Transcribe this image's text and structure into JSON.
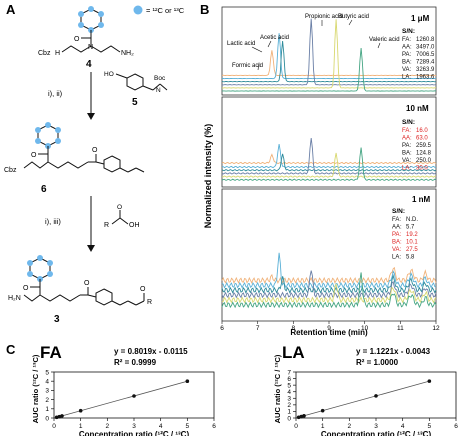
{
  "panels": {
    "a": "A",
    "b": "B",
    "c": "C"
  },
  "scheme": {
    "legend_text": "= ¹²C or ¹³C",
    "label_cbz_top": "Cbz",
    "label_nh2": "NH₂",
    "label_nh_top": "N",
    "label_h_top": "H",
    "compound_4": "4",
    "step1": "i), ii)",
    "reagent5_ho": "HO",
    "reagent5_boc": "Boc",
    "reagent5_n": "N",
    "compound_5": "5",
    "label_cbz_mid": "Cbz",
    "compound_6": "6",
    "step2": "i), iii)",
    "reagent_r": "R",
    "reagent_oh": "OH",
    "label_h2n": "H₂N",
    "label_r": "R",
    "compound_3": "3"
  },
  "chromatogram": {
    "ylabel": "Normalized intensity (%)",
    "xlabel": "Retention time (min)",
    "x_ticks": [
      "6",
      "7",
      "8",
      "9",
      "10",
      "11",
      "12"
    ],
    "colors": {
      "formic": "#f0b27a",
      "lactic": "#5ab0d6",
      "acetic": "#2e8b9a",
      "propionic": "#6a7fa6",
      "butyric": "#d8d870",
      "valeric": "#45a583"
    },
    "top": {
      "conc": "1 μM",
      "peak_labels": [
        "Formic acid",
        "Lactic acid",
        "Acetic acid",
        "Propionic acid",
        "Butyric acid",
        "Valeric acid"
      ],
      "sn_title": "S/N:",
      "sn": [
        {
          "k": "FA:",
          "v": "1260.8",
          "hl": false
        },
        {
          "k": "AA:",
          "v": "3497.0",
          "hl": false
        },
        {
          "k": "PA:",
          "v": "7006.5",
          "hl": false
        },
        {
          "k": "BA:",
          "v": "7289.4",
          "hl": false
        },
        {
          "k": "VA:",
          "v": "3263.9",
          "hl": false
        },
        {
          "k": "LA:",
          "v": "1963.6",
          "hl": false
        }
      ]
    },
    "mid": {
      "conc": "10 nM",
      "sn_title": "S/N:",
      "sn": [
        {
          "k": "FA:",
          "v": "16.0",
          "hl": true
        },
        {
          "k": "AA:",
          "v": "63.0",
          "hl": true
        },
        {
          "k": "PA:",
          "v": "259.5",
          "hl": false
        },
        {
          "k": "BA:",
          "v": "124.8",
          "hl": false
        },
        {
          "k": "VA:",
          "v": "250.0",
          "hl": false
        },
        {
          "k": "LA:",
          "v": "30.0",
          "hl": true
        }
      ]
    },
    "bot": {
      "conc": "1 nM",
      "sn_title": "S/N:",
      "sn": [
        {
          "k": "FA:",
          "v": "N.D.",
          "hl": false
        },
        {
          "k": "AA:",
          "v": "5.7",
          "hl": false
        },
        {
          "k": "PA:",
          "v": "19.2",
          "hl": true
        },
        {
          "k": "BA:",
          "v": "10.1",
          "hl": true
        },
        {
          "k": "VA:",
          "v": "27.5",
          "hl": true
        },
        {
          "k": "LA:",
          "v": "5.8",
          "hl": false
        }
      ]
    }
  },
  "chart_data": [
    {
      "type": "scatter",
      "title": "FA",
      "equation": "y = 0.8019x - 0.0115",
      "r2": "R² = 0.9999",
      "xlabel": "Concentration ratio (¹²C / ¹³C)",
      "ylabel": "AUC ratio (¹²C / ¹³C)",
      "xlim": [
        0,
        6
      ],
      "ylim": [
        0,
        5
      ],
      "x_ticks": [
        0,
        1,
        2,
        3,
        4,
        5,
        6
      ],
      "y_ticks": [
        0,
        1,
        2,
        3,
        4,
        5
      ],
      "x": [
        0.1,
        0.2,
        0.3,
        1,
        3,
        5
      ],
      "y": [
        0.07,
        0.15,
        0.23,
        0.79,
        2.39,
        4.0
      ],
      "fit": {
        "slope": 0.8019,
        "intercept": -0.0115
      }
    },
    {
      "type": "scatter",
      "title": "LA",
      "equation": "y = 1.1221x - 0.0043",
      "r2": "R² = 1.0000",
      "xlabel": "Concentration ratio (¹²C / ¹³C)",
      "ylabel": "AUC ratio (¹²C / ¹³C)",
      "xlim": [
        0,
        6
      ],
      "ylim": [
        0,
        7
      ],
      "x_ticks": [
        0,
        1,
        2,
        3,
        4,
        5,
        6
      ],
      "y_ticks": [
        0,
        1,
        2,
        3,
        4,
        5,
        6,
        7
      ],
      "x": [
        0.1,
        0.2,
        0.3,
        1,
        3,
        5
      ],
      "y": [
        0.11,
        0.22,
        0.33,
        1.12,
        3.36,
        5.61
      ],
      "fit": {
        "slope": 1.1221,
        "intercept": -0.0043
      }
    }
  ]
}
